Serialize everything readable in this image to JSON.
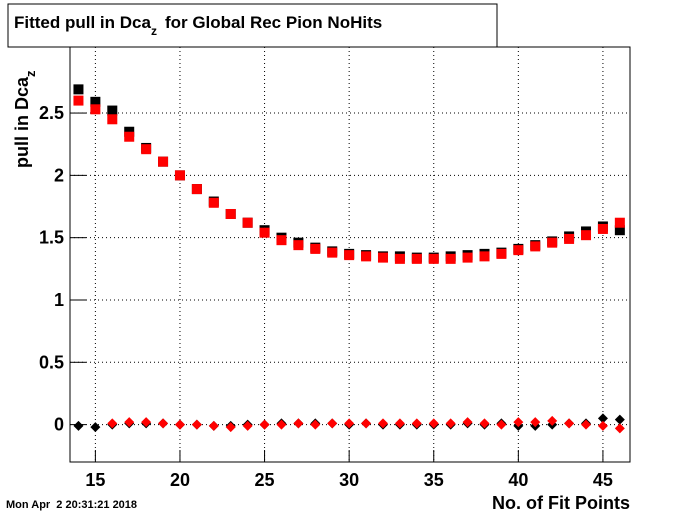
{
  "chart_data": {
    "type": "scatter",
    "title": {
      "text": "Fitted pull in Dca",
      "sub": "z",
      "rest": "for Global Rec Pion NoHits"
    },
    "x_label": "No. of Fit Points",
    "y_label": {
      "text": "pull in Dca",
      "sub": "z"
    },
    "timestamp": "Mon Apr  2 20:31:21 2018",
    "x": [
      14,
      15,
      16,
      17,
      18,
      19,
      20,
      21,
      22,
      23,
      24,
      25,
      26,
      27,
      28,
      29,
      30,
      31,
      32,
      33,
      34,
      35,
      36,
      37,
      38,
      39,
      40,
      41,
      42,
      43,
      44,
      45,
      46
    ],
    "series": [
      {
        "marker": "square",
        "color": "#000000",
        "values": [
          2.69,
          2.59,
          2.52,
          2.35,
          2.22,
          2.11,
          2.0,
          1.89,
          1.79,
          1.69,
          1.62,
          1.56,
          1.5,
          1.46,
          1.42,
          1.39,
          1.37,
          1.36,
          1.35,
          1.35,
          1.34,
          1.34,
          1.35,
          1.36,
          1.37,
          1.38,
          1.41,
          1.44,
          1.47,
          1.51,
          1.55,
          1.59,
          1.56
        ]
      },
      {
        "marker": "square",
        "color": "#ff0000",
        "values": [
          2.6,
          2.53,
          2.45,
          2.31,
          2.21,
          2.11,
          2.0,
          1.89,
          1.78,
          1.69,
          1.62,
          1.54,
          1.48,
          1.44,
          1.41,
          1.38,
          1.36,
          1.35,
          1.34,
          1.33,
          1.33,
          1.33,
          1.33,
          1.34,
          1.35,
          1.37,
          1.4,
          1.43,
          1.46,
          1.49,
          1.52,
          1.57,
          1.62
        ]
      },
      {
        "marker": "diamond",
        "color": "#000000",
        "values": [
          -0.01,
          -0.02,
          0.0,
          0.01,
          0.01,
          0.01,
          0.0,
          0.0,
          -0.01,
          -0.01,
          0.0,
          0.0,
          0.01,
          0.01,
          0.01,
          0.01,
          0.0,
          0.01,
          0.0,
          0.0,
          0.0,
          0.0,
          0.0,
          0.01,
          0.0,
          0.01,
          -0.01,
          -0.01,
          0.0,
          0.01,
          0.01,
          0.05,
          0.04
        ]
      },
      {
        "marker": "diamond",
        "color": "#ff0000",
        "values": [
          null,
          null,
          0.01,
          0.02,
          0.02,
          0.01,
          0.0,
          0.0,
          -0.01,
          -0.02,
          -0.01,
          0.0,
          0.0,
          0.01,
          0.0,
          0.01,
          0.01,
          0.01,
          0.01,
          0.01,
          0.01,
          0.01,
          0.01,
          0.02,
          0.01,
          0.0,
          0.02,
          0.02,
          0.03,
          0.01,
          0.0,
          -0.01,
          -0.03
        ]
      }
    ],
    "xlim": [
      13.5,
      46.6
    ],
    "xticks": [
      15,
      20,
      25,
      30,
      35,
      40,
      45
    ],
    "ylim": [
      -0.3,
      3.03
    ],
    "yticks": [
      0,
      0.5,
      1,
      1.5,
      2,
      2.5
    ],
    "grid": true
  }
}
